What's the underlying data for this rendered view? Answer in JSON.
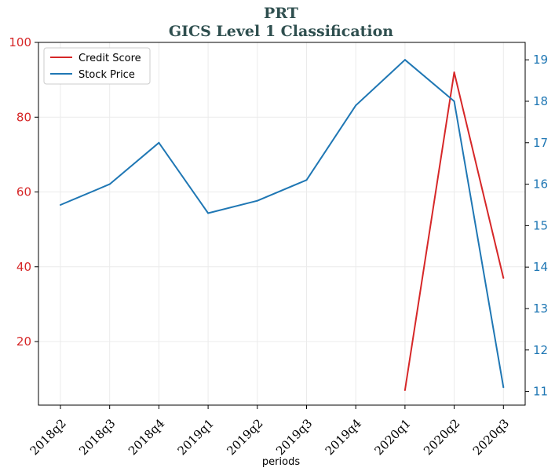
{
  "chart_data": {
    "type": "line",
    "title": "PRT",
    "subtitle": "GICS Level 1 Classification",
    "xlabel": "periods",
    "categories": [
      "2018q2",
      "2018q3",
      "2018q4",
      "2019q1",
      "2019q2",
      "2019q3",
      "2019q4",
      "2020q1",
      "2020q2",
      "2020q3"
    ],
    "left_axis": {
      "ylim": [
        3,
        100
      ],
      "ticks": [
        20,
        40,
        60,
        80,
        100
      ],
      "color": "#d62728"
    },
    "right_axis": {
      "ylim": [
        10.67,
        19.42
      ],
      "ticks": [
        11,
        12,
        13,
        14,
        15,
        16,
        17,
        18,
        19
      ],
      "color": "#1f77b4"
    },
    "series": [
      {
        "name": "Credit Score",
        "axis": "left",
        "color": "#d62728",
        "values": [
          null,
          null,
          null,
          null,
          null,
          null,
          null,
          7,
          92,
          37
        ]
      },
      {
        "name": "Stock Price",
        "axis": "right",
        "color": "#1f77b4",
        "values": [
          15.5,
          16.0,
          17.0,
          15.3,
          15.6,
          16.1,
          17.9,
          19.0,
          18.0,
          11.1
        ]
      }
    ],
    "grid": true,
    "legend_position": "top-left"
  }
}
